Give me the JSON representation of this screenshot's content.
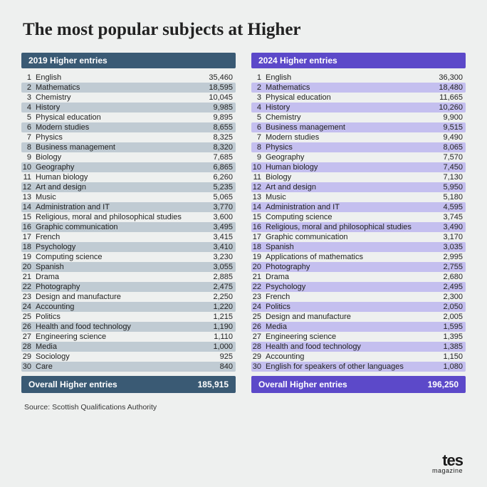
{
  "title": "The most popular subjects at Higher",
  "source": "Source: Scottish Qualifications Authority",
  "logo_top": "tes",
  "logo_bottom": "magazine",
  "years": [
    {
      "header": "2019 Higher entries",
      "header_bg": "#3a5a74",
      "stripe_light": "#eef0ef",
      "stripe_dark": "#c0cbd3",
      "footer_label": "Overall Higher entries",
      "footer_value": "185,915",
      "rows": [
        {
          "r": "1",
          "s": "English",
          "v": "35,460"
        },
        {
          "r": "2",
          "s": "Mathematics",
          "v": "18,595"
        },
        {
          "r": "3",
          "s": "Chemistry",
          "v": "10,045"
        },
        {
          "r": "4",
          "s": "History",
          "v": "9,985"
        },
        {
          "r": "5",
          "s": "Physical education",
          "v": "9,895"
        },
        {
          "r": "6",
          "s": "Modern studies",
          "v": "8,655"
        },
        {
          "r": "7",
          "s": "Physics",
          "v": "8,325"
        },
        {
          "r": "8",
          "s": "Business management",
          "v": "8,320"
        },
        {
          "r": "9",
          "s": "Biology",
          "v": "7,685"
        },
        {
          "r": "10",
          "s": "Geography",
          "v": "6,865"
        },
        {
          "r": "11",
          "s": "Human biology",
          "v": "6,260"
        },
        {
          "r": "12",
          "s": "Art and design",
          "v": "5,235"
        },
        {
          "r": "13",
          "s": "Music",
          "v": "5,065"
        },
        {
          "r": "14",
          "s": "Administration and IT",
          "v": "3,770"
        },
        {
          "r": "15",
          "s": "Religious, moral and philosophical studies",
          "v": "3,600"
        },
        {
          "r": "16",
          "s": "Graphic communication",
          "v": "3,495"
        },
        {
          "r": "17",
          "s": "French",
          "v": "3,415"
        },
        {
          "r": "18",
          "s": "Psychology",
          "v": "3,410"
        },
        {
          "r": "19",
          "s": "Computing science",
          "v": "3,230"
        },
        {
          "r": "20",
          "s": "Spanish",
          "v": "3,055"
        },
        {
          "r": "21",
          "s": "Drama",
          "v": "2,885"
        },
        {
          "r": "22",
          "s": "Photography",
          "v": "2,475"
        },
        {
          "r": "23",
          "s": "Design and manufacture",
          "v": "2,250"
        },
        {
          "r": "24",
          "s": "Accounting",
          "v": "1,220"
        },
        {
          "r": "25",
          "s": "Politics",
          "v": "1,215"
        },
        {
          "r": "26",
          "s": "Health and food technology",
          "v": "1,190"
        },
        {
          "r": "27",
          "s": "Engineering science",
          "v": "1,110"
        },
        {
          "r": "28",
          "s": "Media",
          "v": "1,000"
        },
        {
          "r": "29",
          "s": "Sociology",
          "v": "925"
        },
        {
          "r": "30",
          "s": "Care",
          "v": "840"
        }
      ]
    },
    {
      "header": "2024 Higher entries",
      "header_bg": "#5c49c9",
      "stripe_light": "#eef0ef",
      "stripe_dark": "#c4bfef",
      "footer_label": "Overall Higher entries",
      "footer_value": "196,250",
      "rows": [
        {
          "r": "1",
          "s": "English",
          "v": "36,300"
        },
        {
          "r": "2",
          "s": "Mathematics",
          "v": "18,480"
        },
        {
          "r": "3",
          "s": "Physical education",
          "v": "11,665"
        },
        {
          "r": "4",
          "s": "History",
          "v": "10,260"
        },
        {
          "r": "5",
          "s": "Chemistry",
          "v": "9,900"
        },
        {
          "r": "6",
          "s": "Business management",
          "v": "9,515"
        },
        {
          "r": "7",
          "s": "Modern studies",
          "v": "9,490"
        },
        {
          "r": "8",
          "s": "Physics",
          "v": "8,065"
        },
        {
          "r": "9",
          "s": "Geography",
          "v": "7,570"
        },
        {
          "r": "10",
          "s": "Human biology",
          "v": "7,450"
        },
        {
          "r": "11",
          "s": "Biology",
          "v": "7,130"
        },
        {
          "r": "12",
          "s": "Art and design",
          "v": "5,950"
        },
        {
          "r": "13",
          "s": "Music",
          "v": "5,180"
        },
        {
          "r": "14",
          "s": "Administration and IT",
          "v": "4,595"
        },
        {
          "r": "15",
          "s": "Computing science",
          "v": "3,745"
        },
        {
          "r": "16",
          "s": "Religious, moral and philosophical studies",
          "v": "3,490"
        },
        {
          "r": "17",
          "s": "Graphic communication",
          "v": "3,170"
        },
        {
          "r": "18",
          "s": "Spanish",
          "v": "3,035"
        },
        {
          "r": "19",
          "s": "Applications of mathematics",
          "v": "2,995"
        },
        {
          "r": "20",
          "s": "Photography",
          "v": "2,755"
        },
        {
          "r": "21",
          "s": "Drama",
          "v": "2,680"
        },
        {
          "r": "22",
          "s": "Psychology",
          "v": "2,495"
        },
        {
          "r": "23",
          "s": "French",
          "v": "2,300"
        },
        {
          "r": "24",
          "s": "Politics",
          "v": "2,050"
        },
        {
          "r": "25",
          "s": "Design and manufacture",
          "v": "2,005"
        },
        {
          "r": "26",
          "s": "Media",
          "v": "1,595"
        },
        {
          "r": "27",
          "s": "Engineering science",
          "v": "1,395"
        },
        {
          "r": "28",
          "s": "Health and food technology",
          "v": "1,385"
        },
        {
          "r": "29",
          "s": "Accounting",
          "v": "1,150"
        },
        {
          "r": "30",
          "s": "English for speakers of other languages",
          "v": "1,080"
        }
      ]
    }
  ]
}
